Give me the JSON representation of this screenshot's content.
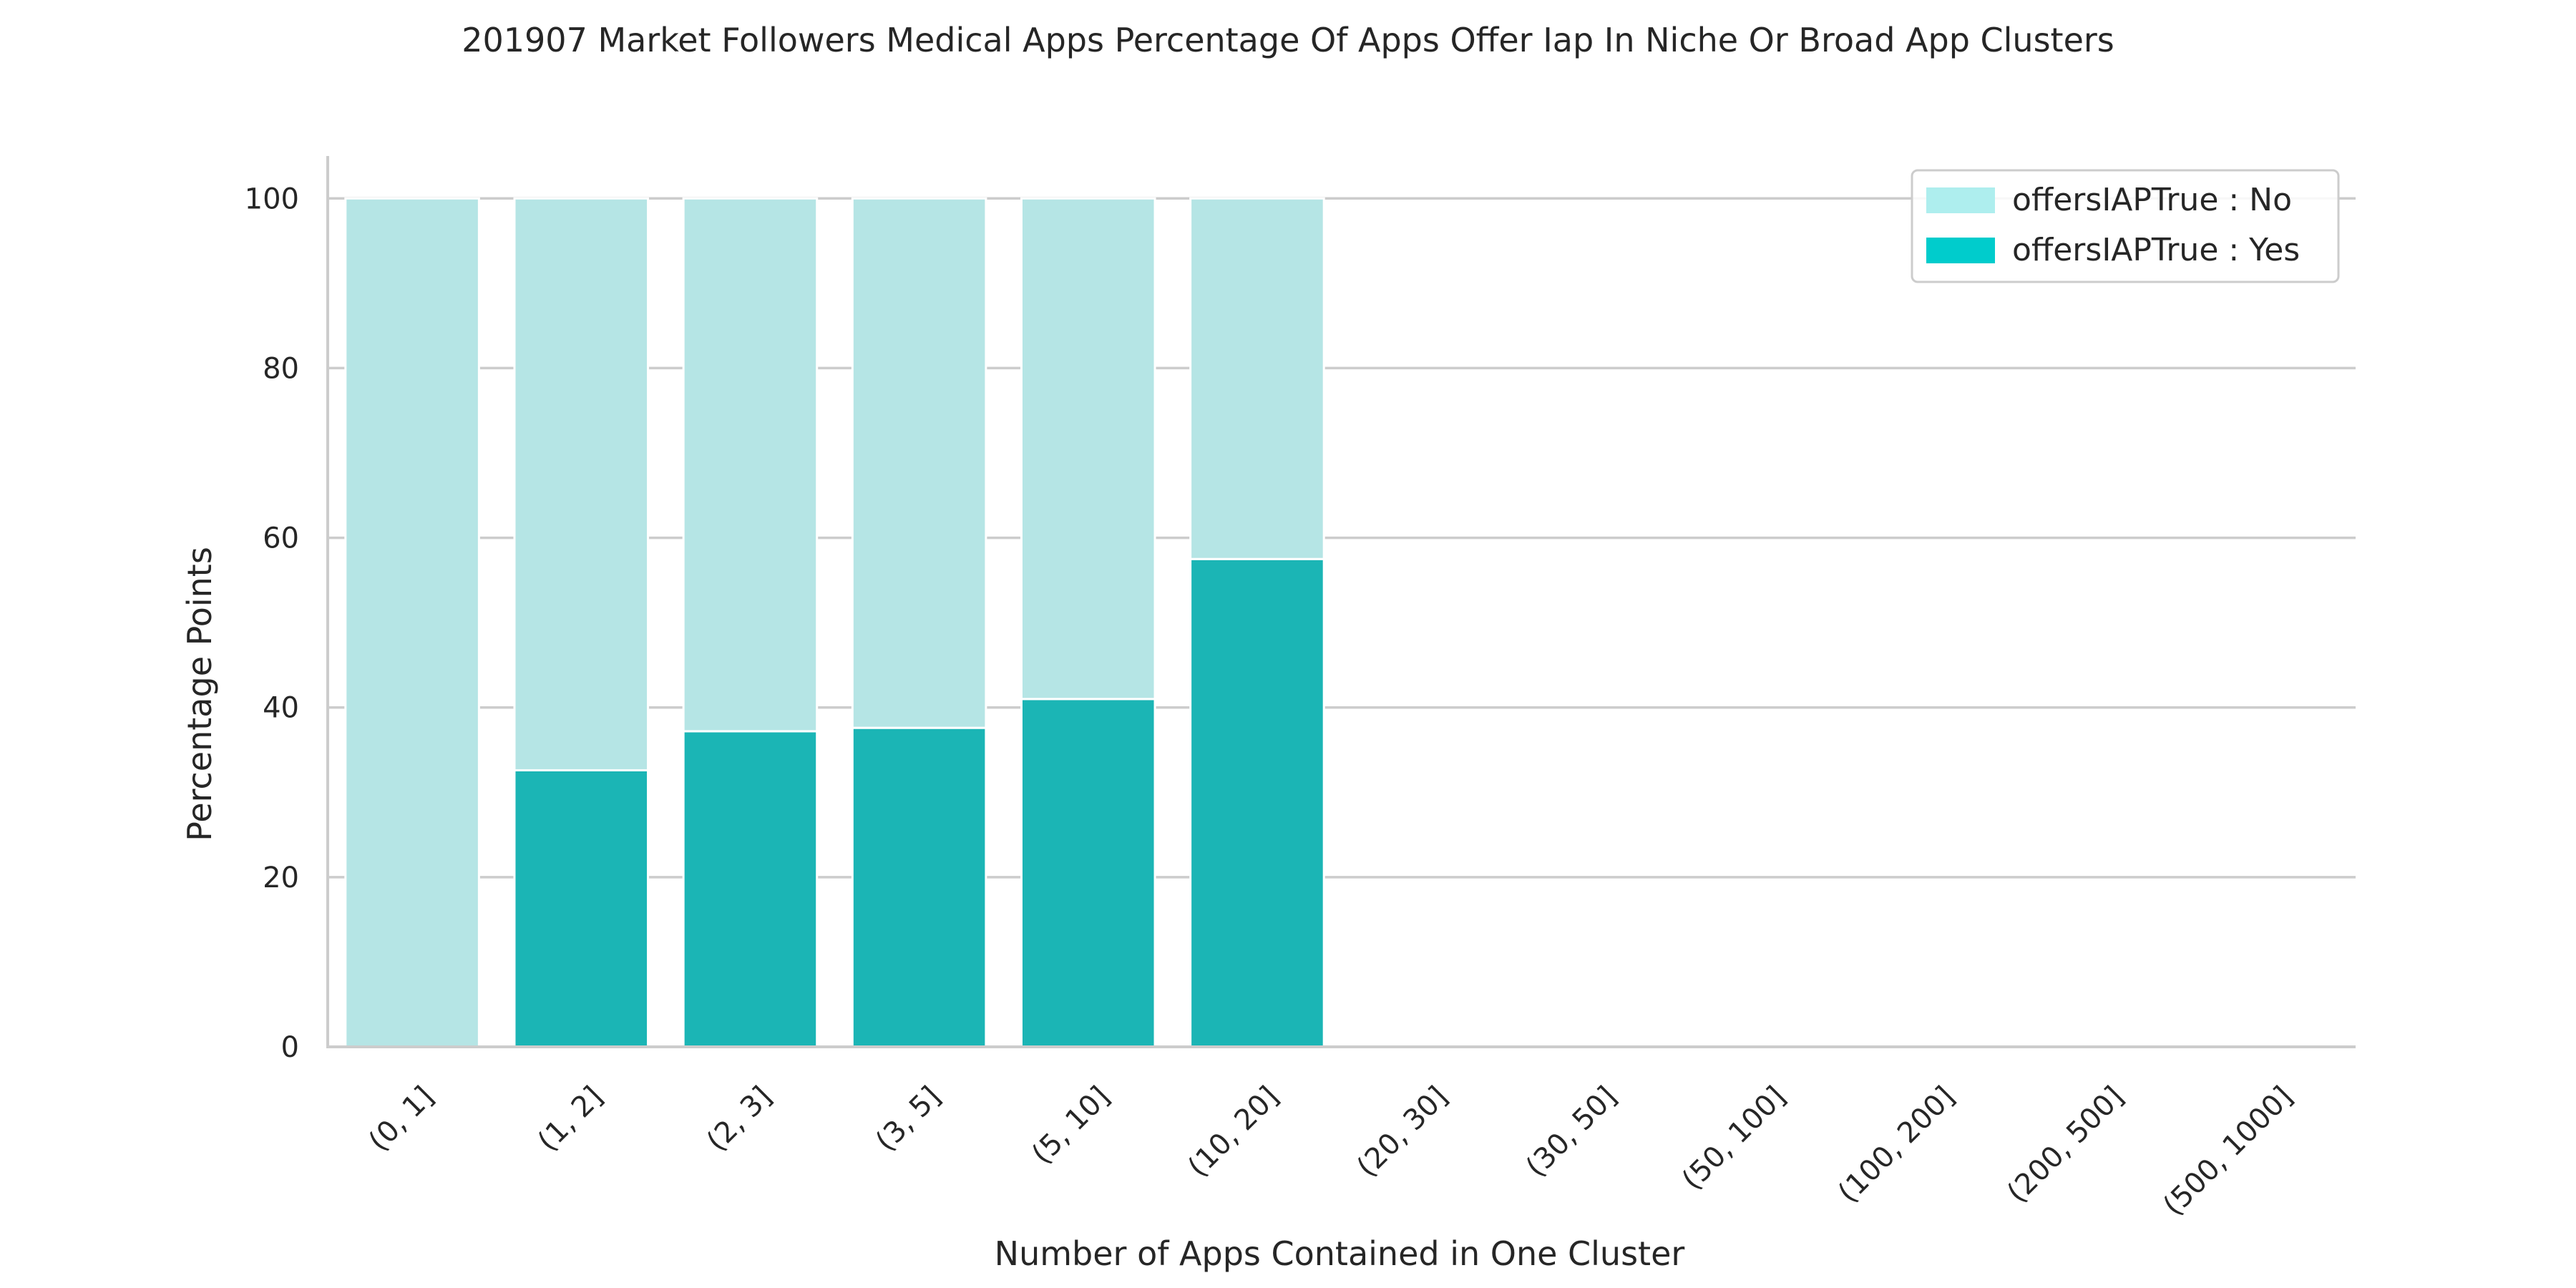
{
  "chart_data": {
    "type": "bar",
    "stacked": true,
    "title": "201907 Market Followers Medical Apps Percentage Of Apps Offer Iap In Niche Or Broad App Clusters",
    "xlabel": "Number of Apps Contained in One Cluster",
    "ylabel": "Percentage Points",
    "ylim": [
      0,
      105
    ],
    "yticks": [
      0,
      20,
      40,
      60,
      80,
      100
    ],
    "grid": "horizontal",
    "legend_position": "top-right",
    "categories": [
      "(0, 1]",
      "(1, 2]",
      "(2, 3]",
      "(3, 5]",
      "(5, 10]",
      "(10, 20]",
      "(20, 30]",
      "(30, 50]",
      "(50, 100]",
      "(100, 200]",
      "(200, 500]",
      "(500, 1000]"
    ],
    "series": [
      {
        "name": "offersIAPTrue : Yes",
        "values": [
          0,
          32.6,
          37.2,
          37.6,
          41.0,
          57.5,
          null,
          null,
          null,
          null,
          null,
          null
        ],
        "bar_color": "#1bb5b5",
        "legend_color": "#00cccc"
      },
      {
        "name": "offersIAPTrue : No",
        "values": [
          100,
          67.4,
          62.8,
          62.4,
          59.0,
          42.5,
          null,
          null,
          null,
          null,
          null,
          null
        ],
        "bar_color": "#b5e5e5",
        "legend_color": "#aeeeee"
      }
    ],
    "legend_order": [
      "offersIAPTrue : No",
      "offersIAPTrue : Yes"
    ]
  }
}
